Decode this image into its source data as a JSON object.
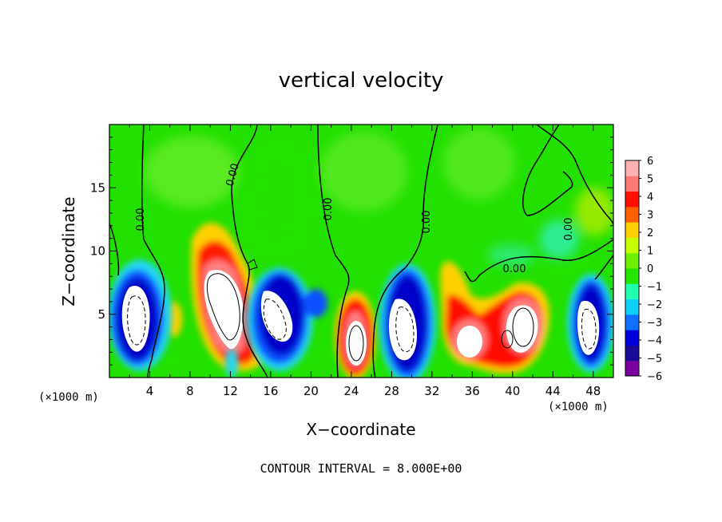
{
  "chart_data": {
    "type": "heatmap",
    "title": "vertical velocity",
    "xlabel": "X−coordinate",
    "ylabel": "Z−coordinate",
    "x_unit_label": "(×1000 m)",
    "y_unit_label": "(×1000 m)",
    "xlim": [
      0,
      50
    ],
    "ylim": [
      0,
      20
    ],
    "xticks": [
      4,
      8,
      12,
      16,
      20,
      24,
      28,
      32,
      36,
      40,
      44,
      48
    ],
    "yticks": [
      5,
      10,
      15
    ],
    "colorbar": {
      "ticks": [
        6,
        5,
        4,
        3,
        2,
        1,
        0,
        -1,
        -2,
        -3,
        -4,
        -5,
        -6
      ],
      "range": [
        -6,
        6
      ],
      "colors": [
        "#7a00a0",
        "#1a0a9a",
        "#0000d8",
        "#1070ff",
        "#10d0f8",
        "#22ffb0",
        "#22e600",
        "#6ef000",
        "#c8ff00",
        "#ffd000",
        "#ff6000",
        "#ff1000",
        "#ff7878",
        "#ffb0b0"
      ]
    },
    "contour_label": "0.00",
    "contour_interval_text": "CONTOUR INTERVAL = 8.000E+00",
    "features": [
      {
        "x": 3.0,
        "z": 4.5,
        "value": -8,
        "sign": "down"
      },
      {
        "x": 10.5,
        "z": 5.5,
        "value": 8,
        "sign": "up"
      },
      {
        "x": 16.5,
        "z": 4.5,
        "value": -8,
        "sign": "down"
      },
      {
        "x": 24.5,
        "z": 3.2,
        "value": 8,
        "sign": "up"
      },
      {
        "x": 29.5,
        "z": 4.2,
        "value": -8,
        "sign": "down"
      },
      {
        "x": 35.5,
        "z": 3.0,
        "value": 8,
        "sign": "up"
      },
      {
        "x": 41.0,
        "z": 4.2,
        "value": 8,
        "sign": "up"
      },
      {
        "x": 47.0,
        "z": 4.0,
        "value": -8,
        "sign": "down"
      }
    ]
  }
}
